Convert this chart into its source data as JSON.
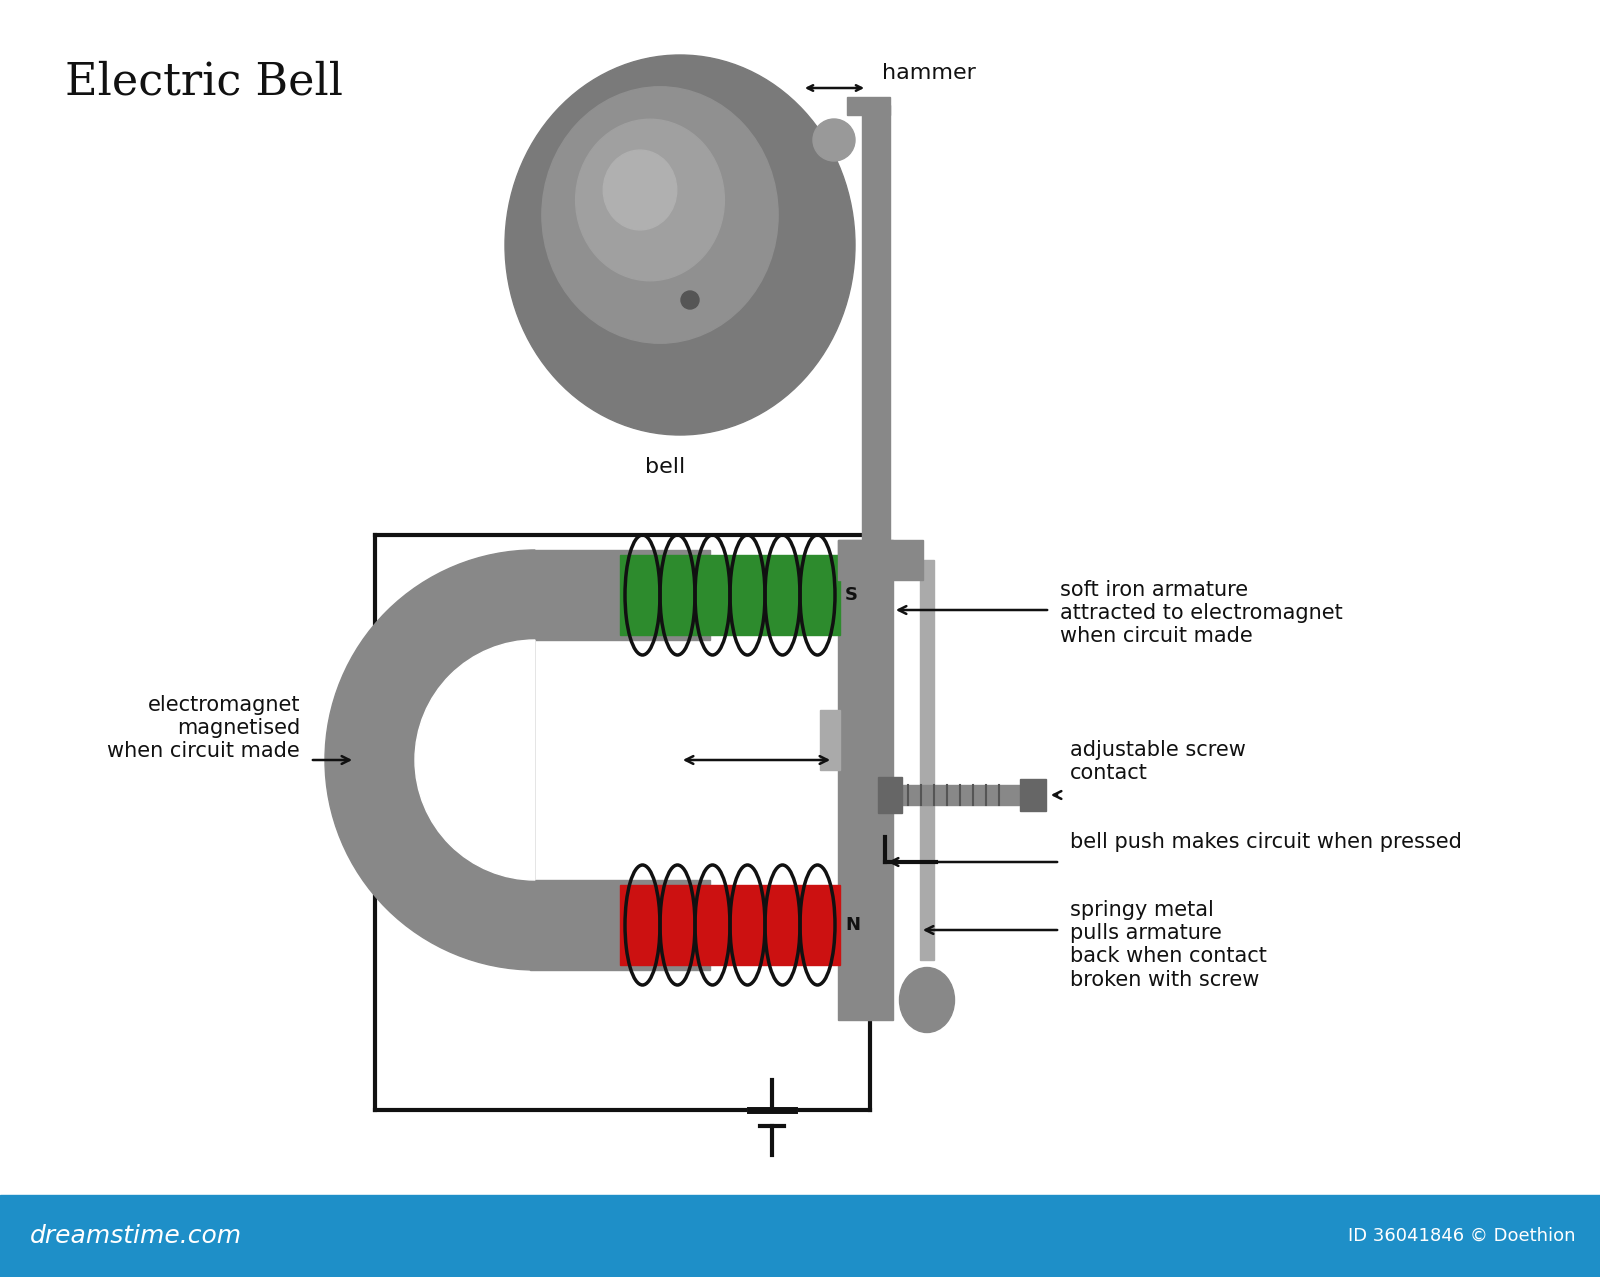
{
  "title": "Electric Bell",
  "bg_color": "#ffffff",
  "gray": "#888888",
  "dark_gray": "#666666",
  "green": "#2d8b2d",
  "red": "#cc1111",
  "black": "#111111",
  "footer_color": "#1e8fc8",
  "footer_text": "dreamstime.com",
  "footer_id": "ID 36041846 © Doethion",
  "labels": {
    "hammer": "hammer",
    "bell": "bell",
    "soft_iron": "soft iron armature\nattracted to electromagnet\nwhen circuit made",
    "electromagnet": "electromagnet\nmagnetised\nwhen circuit made",
    "adjustable_screw": "adjustable screw\ncontact",
    "bell_push": "bell push makes circuit when pressed",
    "springy_metal": "springy metal\npulls armature\nback when contact\nbroken with screw"
  }
}
